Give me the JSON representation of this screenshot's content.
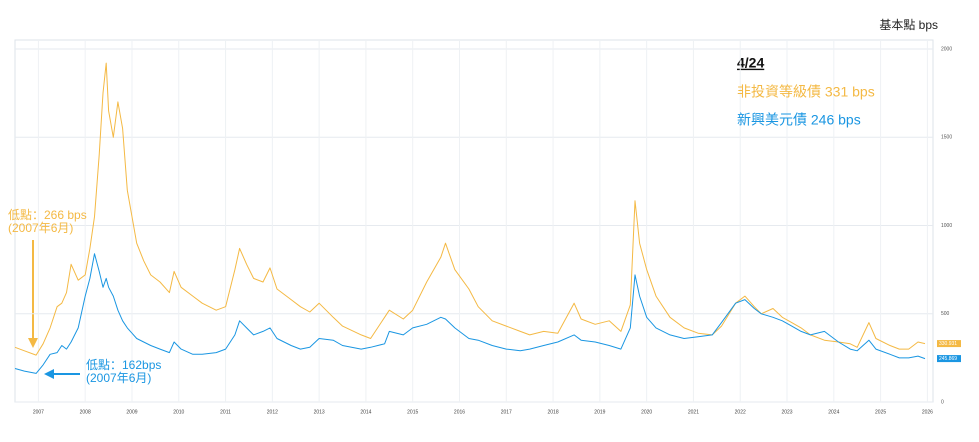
{
  "chart_data": {
    "type": "line",
    "y_axis_label": "基本點 bps",
    "legend_title": "4/24",
    "x": [
      2007.0,
      2007.2,
      2007.45,
      2007.6,
      2007.75,
      2007.9,
      2008.0,
      2008.1,
      2008.2,
      2008.35,
      2008.5,
      2008.6,
      2008.7,
      2008.8,
      2008.88,
      2008.95,
      2009.0,
      2009.1,
      2009.2,
      2009.3,
      2009.4,
      2009.5,
      2009.6,
      2009.75,
      2009.9,
      2010.1,
      2010.3,
      2010.4,
      2010.55,
      2010.8,
      2011.0,
      2011.3,
      2011.5,
      2011.7,
      2011.8,
      2011.95,
      2012.1,
      2012.3,
      2012.45,
      2012.6,
      2012.9,
      2013.1,
      2013.3,
      2013.5,
      2013.8,
      2014.0,
      2014.4,
      2014.6,
      2014.9,
      2015.0,
      2015.3,
      2015.5,
      2015.8,
      2016.1,
      2016.2,
      2016.4,
      2016.7,
      2016.9,
      2017.2,
      2017.5,
      2017.8,
      2018.0,
      2018.3,
      2018.6,
      2018.95,
      2019.1,
      2019.4,
      2019.7,
      2019.95,
      2020.15,
      2020.25,
      2020.35,
      2020.5,
      2020.7,
      2021.0,
      2021.3,
      2021.6,
      2021.9,
      2022.1,
      2022.4,
      2022.6,
      2022.8,
      2022.95,
      2023.2,
      2023.4,
      2023.6,
      2023.8,
      2024.0,
      2024.3,
      2024.6,
      2024.85,
      2025.0,
      2025.25,
      2025.4,
      2025.7,
      2025.9,
      2026.1,
      2026.3,
      2026.45
    ],
    "series": [
      {
        "name": "非投資等級債 331 bps",
        "color": "#f4b944",
        "end_label": "330.931",
        "values": [
          310,
          290,
          266,
          330,
          420,
          540,
          560,
          620,
          780,
          690,
          720,
          870,
          1050,
          1400,
          1750,
          1920,
          1650,
          1500,
          1700,
          1550,
          1200,
          1050,
          900,
          800,
          720,
          680,
          620,
          740,
          650,
          600,
          560,
          520,
          540,
          750,
          870,
          780,
          700,
          680,
          760,
          640,
          580,
          540,
          510,
          560,
          480,
          430,
          380,
          360,
          480,
          520,
          470,
          520,
          680,
          820,
          900,
          750,
          640,
          540,
          460,
          430,
          400,
          380,
          400,
          390,
          560,
          470,
          440,
          460,
          400,
          550,
          1140,
          900,
          750,
          600,
          480,
          420,
          390,
          380,
          430,
          560,
          600,
          540,
          500,
          530,
          480,
          450,
          420,
          380,
          350,
          340,
          330,
          310,
          450,
          360,
          320,
          300,
          300,
          340,
          331
        ]
      },
      {
        "name": "新興美元債 246 bps",
        "color": "#1a96e2",
        "end_label": "245.869",
        "values": [
          190,
          175,
          162,
          210,
          270,
          280,
          320,
          300,
          340,
          420,
          600,
          700,
          840,
          740,
          650,
          700,
          650,
          600,
          520,
          460,
          420,
          390,
          360,
          340,
          320,
          300,
          280,
          340,
          300,
          270,
          270,
          280,
          300,
          380,
          460,
          420,
          380,
          400,
          420,
          360,
          320,
          300,
          310,
          360,
          350,
          320,
          300,
          310,
          330,
          400,
          380,
          420,
          440,
          480,
          470,
          420,
          360,
          350,
          320,
          300,
          290,
          300,
          320,
          340,
          380,
          350,
          340,
          320,
          300,
          420,
          720,
          600,
          480,
          420,
          380,
          360,
          370,
          380,
          450,
          560,
          580,
          530,
          500,
          480,
          460,
          430,
          400,
          380,
          400,
          340,
          300,
          290,
          350,
          300,
          270,
          250,
          250,
          260,
          246
        ]
      }
    ],
    "annotations": [
      {
        "lines": [
          "低點：266 bps",
          "(2007年6月)"
        ],
        "color": "#f4b944"
      },
      {
        "lines": [
          "低點：162bps",
          "(2007年6月)"
        ],
        "color": "#1a96e2"
      }
    ],
    "xlim": [
      2007.0,
      2026.62
    ],
    "xticks": [
      {
        "value": 2007.5,
        "label": "2007"
      },
      {
        "value": 2008.5,
        "label": "2008"
      },
      {
        "value": 2009.5,
        "label": "2009"
      },
      {
        "value": 2010.5,
        "label": "2010"
      },
      {
        "value": 2011.5,
        "label": "2011"
      },
      {
        "value": 2012.5,
        "label": "2012"
      },
      {
        "value": 2013.5,
        "label": "2013"
      },
      {
        "value": 2014.5,
        "label": "2014"
      },
      {
        "value": 2015.5,
        "label": "2015"
      },
      {
        "value": 2016.5,
        "label": "2016"
      },
      {
        "value": 2017.5,
        "label": "2017"
      },
      {
        "value": 2018.5,
        "label": "2018"
      },
      {
        "value": 2019.5,
        "label": "2019"
      },
      {
        "value": 2020.5,
        "label": "2020"
      },
      {
        "value": 2021.5,
        "label": "2021"
      },
      {
        "value": 2022.5,
        "label": "2022"
      },
      {
        "value": 2023.5,
        "label": "2023"
      },
      {
        "value": 2024.5,
        "label": "2024"
      },
      {
        "value": 2025.5,
        "label": "2025"
      },
      {
        "value": 2026.5,
        "label": "2026"
      }
    ],
    "ylim": [
      0,
      2000
    ],
    "yticks": [
      0,
      500,
      1000,
      1500,
      2000
    ],
    "grid": true
  }
}
